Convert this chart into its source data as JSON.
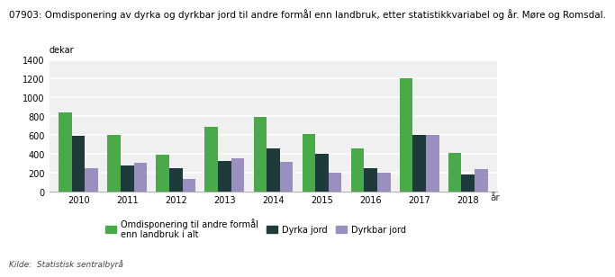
{
  "title": "07903: Omdisponering av dyrka og dyrkbar jord til andre formål enn landbruk, etter statistikkvariabel og år. Møre og Romsdal.",
  "ylabel": "dekar",
  "xlabel": "år",
  "years": [
    2010,
    2011,
    2012,
    2013,
    2014,
    2015,
    2016,
    2017,
    2018
  ],
  "series": {
    "Omdisponering til andre formål\nenn landbruk i alt": [
      840,
      600,
      390,
      685,
      790,
      615,
      455,
      1205,
      415
    ],
    "Dyrka jord": [
      595,
      275,
      250,
      325,
      455,
      400,
      250,
      600,
      180
    ],
    "Dyrkbar jord": [
      245,
      305,
      135,
      355,
      320,
      205,
      200,
      600,
      235
    ]
  },
  "colors": {
    "Omdisponering til andre formål\nenn landbruk i alt": "#4aaa4a",
    "Dyrka jord": "#1f3a3a",
    "Dyrkbar jord": "#9b8fc0"
  },
  "ylim": [
    0,
    1400
  ],
  "yticks": [
    0,
    200,
    400,
    600,
    800,
    1000,
    1200,
    1400
  ],
  "fig_background": "#ffffff",
  "plot_background": "#f0f0f0",
  "grid_color": "#ffffff",
  "source_text": "Kilde:  Statistisk sentralbyrå",
  "title_fontsize": 7.5,
  "axis_fontsize": 7.5,
  "tick_fontsize": 7,
  "legend_fontsize": 7
}
